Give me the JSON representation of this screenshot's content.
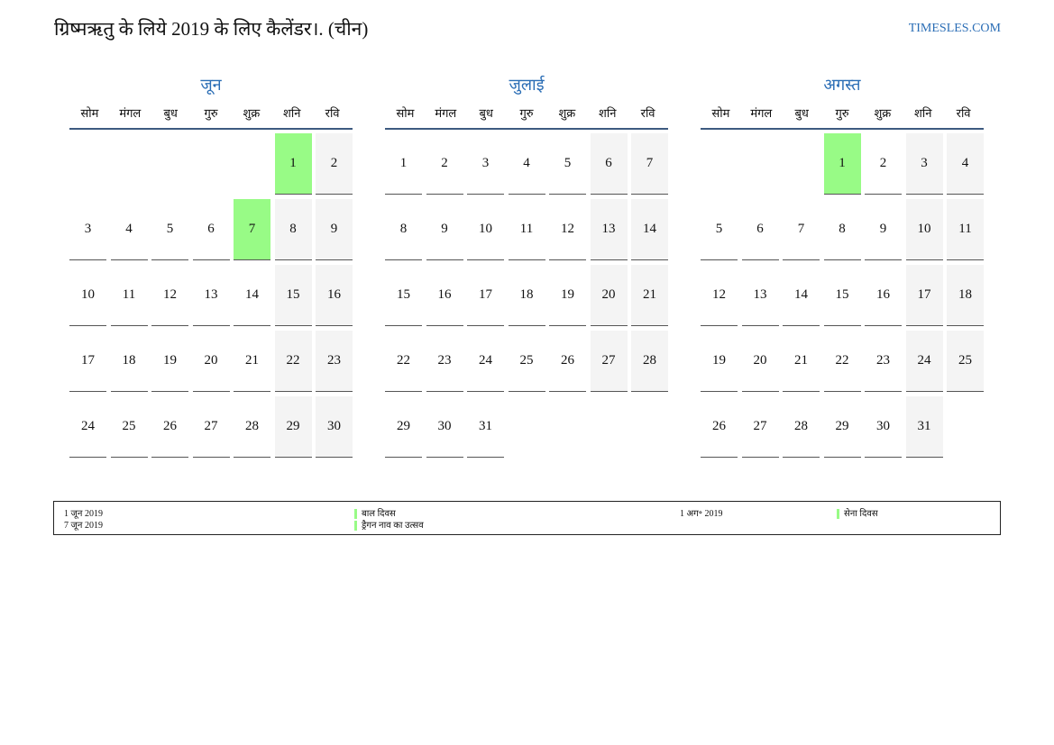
{
  "title": "ग्रिष्मऋतु के लिये 2019 के लिए कैलेंडर।. (चीन)",
  "site": "TIMESLES.COM",
  "colors": {
    "accent": "#2a6db5",
    "holiday": "#98fb86",
    "weekend": "#f4f4f4"
  },
  "weekdays": [
    "सोम",
    "मंगल",
    "बुध",
    "गुरु",
    "शुक्र",
    "शनि",
    "रवि"
  ],
  "months": [
    {
      "name": "जून",
      "weeks": [
        [
          null,
          null,
          null,
          null,
          null,
          1,
          2
        ],
        [
          3,
          4,
          5,
          6,
          7,
          8,
          9
        ],
        [
          10,
          11,
          12,
          13,
          14,
          15,
          16
        ],
        [
          17,
          18,
          19,
          20,
          21,
          22,
          23
        ],
        [
          24,
          25,
          26,
          27,
          28,
          29,
          30
        ]
      ],
      "holidays": [
        1,
        7
      ]
    },
    {
      "name": "जुलाई",
      "weeks": [
        [
          1,
          2,
          3,
          4,
          5,
          6,
          7
        ],
        [
          8,
          9,
          10,
          11,
          12,
          13,
          14
        ],
        [
          15,
          16,
          17,
          18,
          19,
          20,
          21
        ],
        [
          22,
          23,
          24,
          25,
          26,
          27,
          28
        ],
        [
          29,
          30,
          31,
          null,
          null,
          null,
          null
        ]
      ],
      "holidays": []
    },
    {
      "name": "अगस्त",
      "weeks": [
        [
          null,
          null,
          null,
          1,
          2,
          3,
          4
        ],
        [
          5,
          6,
          7,
          8,
          9,
          10,
          11
        ],
        [
          12,
          13,
          14,
          15,
          16,
          17,
          18
        ],
        [
          19,
          20,
          21,
          22,
          23,
          24,
          25
        ],
        [
          26,
          27,
          28,
          29,
          30,
          31,
          null
        ]
      ],
      "holidays": [
        1
      ]
    }
  ],
  "legend": [
    {
      "date": "1 जून 2019",
      "name": "बाल दिवस"
    },
    {
      "date": "7 जून 2019",
      "name": "ड्रैगन नाव का उत्सव"
    },
    {
      "date": "1 अग॰ 2019",
      "name": "सेना दिवस"
    }
  ]
}
